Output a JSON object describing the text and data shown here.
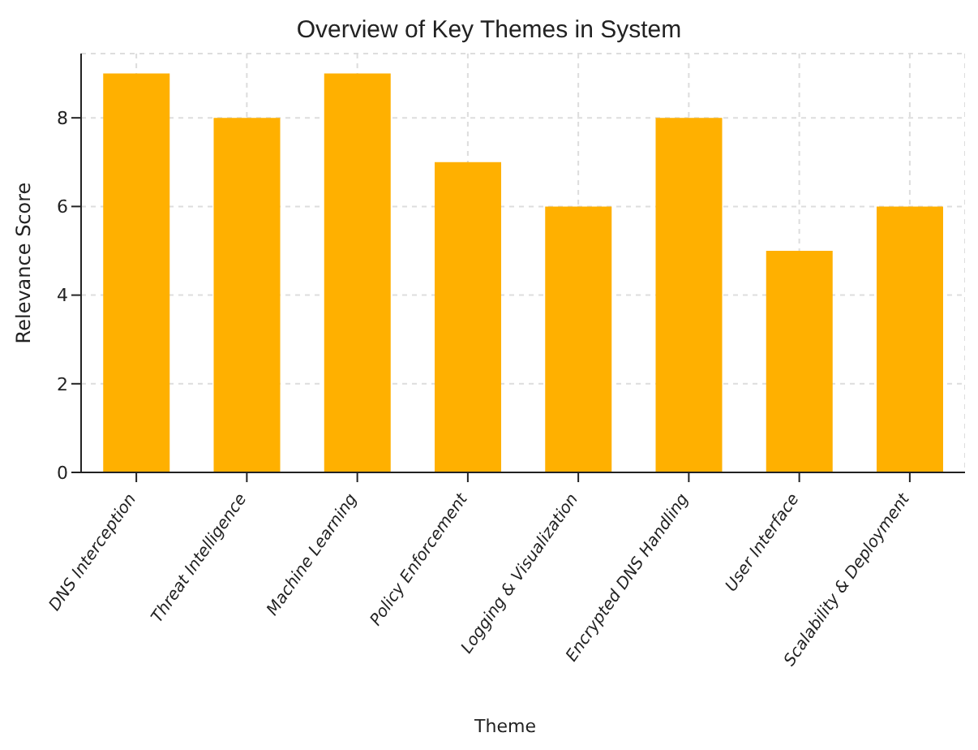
{
  "chart_data": {
    "type": "bar",
    "title": "Overview of Key Themes in System",
    "xlabel": "Theme",
    "ylabel": "Relevance Score",
    "categories": [
      "DNS Interception",
      "Threat Intelligence",
      "Machine Learning",
      "Policy Enforcement",
      "Logging & Visualization",
      "Encrypted DNS Handling",
      "User Interface",
      "Scalability & Deployment"
    ],
    "values": [
      9,
      8,
      9,
      7,
      6,
      8,
      5,
      6
    ],
    "color": "#ffb000",
    "ylim": [
      0,
      9.45
    ],
    "yticks": [
      0,
      2,
      4,
      6,
      8
    ],
    "grid": true
  }
}
